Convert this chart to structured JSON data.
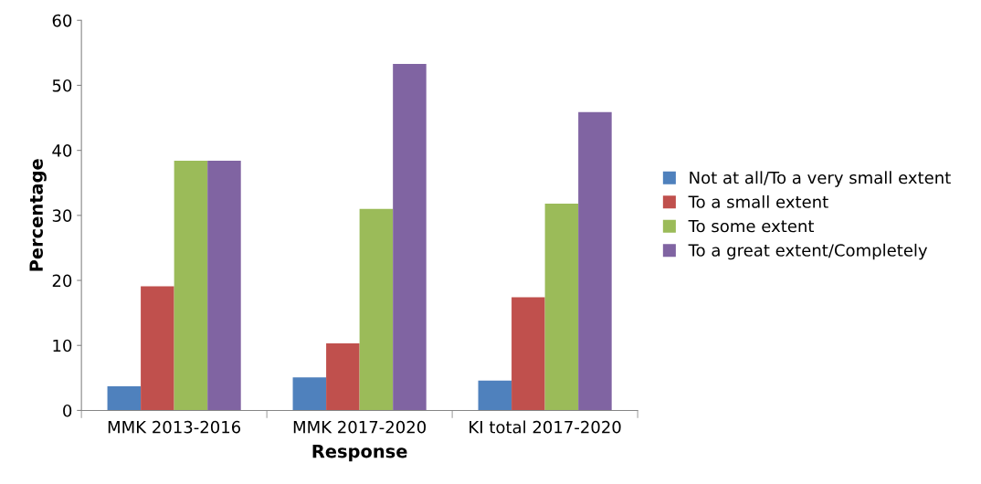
{
  "chart_data": {
    "type": "bar",
    "xlabel": "Response",
    "ylabel": "Percentage",
    "categories": [
      "MMK 2013-2016",
      "MMK 2017-2020",
      "KI total 2017-2020"
    ],
    "series": [
      {
        "name": "Not at all/To a very small extent",
        "color": "#4f81bd",
        "values": [
          3.7,
          5.1,
          4.6
        ]
      },
      {
        "name": "To a small extent",
        "color": "#c0504d",
        "values": [
          19.1,
          10.3,
          17.4
        ]
      },
      {
        "name": "To some extent",
        "color": "#9bbb59",
        "values": [
          38.4,
          31.0,
          31.8
        ]
      },
      {
        "name": "To a great extent/Completely",
        "color": "#8064a2",
        "values": [
          38.4,
          53.3,
          45.9
        ]
      }
    ],
    "ylim": [
      0,
      60
    ],
    "yticks": [
      0,
      10,
      20,
      30,
      40,
      50,
      60
    ],
    "grid": false,
    "legend": "right"
  }
}
